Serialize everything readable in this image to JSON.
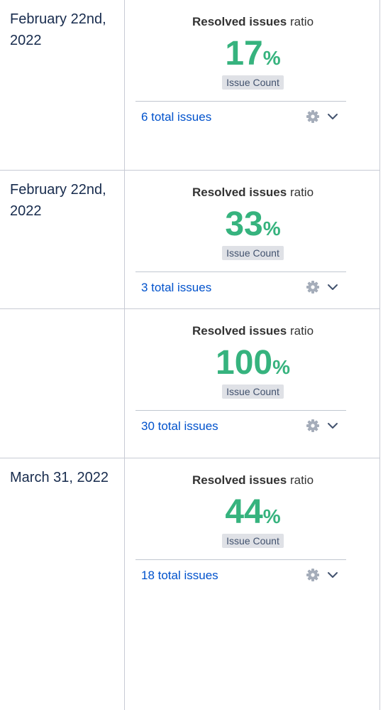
{
  "rows": [
    {
      "date": "February 22nd, 2022",
      "title_bold": "Resolved issues",
      "title_rest": "ratio",
      "value": "17",
      "unit": "%",
      "badge": "Issue Count",
      "total": "6 total issues"
    },
    {
      "date": "February 22nd, 2022",
      "title_bold": "Resolved issues",
      "title_rest": "ratio",
      "value": "33",
      "unit": "%",
      "badge": "Issue Count",
      "total": "3 total issues"
    },
    {
      "date": "",
      "title_bold": "Resolved issues",
      "title_rest": "ratio",
      "value": "100",
      "unit": "%",
      "badge": "Issue Count",
      "total": "30 total issues"
    },
    {
      "date": "March 31, 2022",
      "title_bold": "Resolved issues",
      "title_rest": "ratio",
      "value": "44",
      "unit": "%",
      "badge": "Issue Count",
      "total": "18 total issues"
    }
  ],
  "icons": {
    "settings": "gear-icon",
    "expand": "chevron-down-icon"
  },
  "colors": {
    "ratio": "#36b37e",
    "link": "#0052cc",
    "badge_bg": "#dfe1e6",
    "date_text": "#172b4d"
  }
}
